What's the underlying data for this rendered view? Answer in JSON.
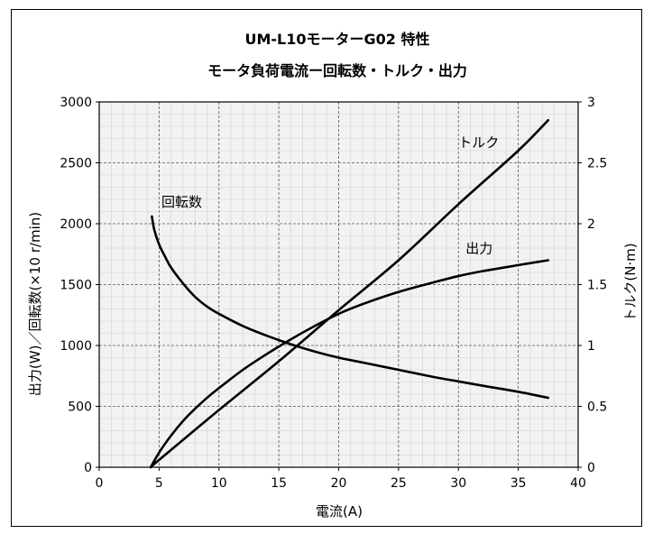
{
  "chart_data": {
    "type": "line",
    "title": "UM-L10モーターG02  特性",
    "subtitle": "モータ負荷電流ー回転数・トルク・出力",
    "xlabel": "電流(A)",
    "ylabel_left": "出力(W)／回転数(×10  r/min)",
    "ylabel_right": "トルク(N·m)",
    "xlim": [
      0,
      40
    ],
    "ylim_left": [
      0,
      3000
    ],
    "ylim_right": [
      0,
      3
    ],
    "x_ticks": [
      0,
      5,
      10,
      15,
      20,
      25,
      30,
      35,
      40
    ],
    "y_left_ticks": [
      0,
      500,
      1000,
      1500,
      2000,
      2500,
      3000
    ],
    "y_right_ticks": [
      "0",
      "0.5",
      "1",
      "1.5",
      "2",
      "2.5",
      "3"
    ],
    "grid": true,
    "series": [
      {
        "name": "回転数",
        "axis": "left",
        "x": [
          4.4,
          4.6,
          5,
          5.5,
          6,
          7,
          8,
          9,
          10,
          12,
          14,
          16,
          18,
          20,
          22,
          25,
          28,
          30,
          32,
          35,
          37.5
        ],
        "y": [
          2060,
          1950,
          1830,
          1730,
          1640,
          1510,
          1400,
          1320,
          1260,
          1160,
          1080,
          1010,
          950,
          900,
          860,
          800,
          740,
          705,
          670,
          620,
          570
        ]
      },
      {
        "name": "トルク",
        "axis": "right",
        "x": [
          4.3,
          5,
          10,
          15,
          20,
          25,
          30,
          35,
          37.5
        ],
        "y": [
          0,
          0.06,
          0.47,
          0.87,
          1.29,
          1.7,
          2.16,
          2.6,
          2.85
        ]
      },
      {
        "name": "出力",
        "axis": "left",
        "x": [
          4.3,
          5,
          6,
          7,
          8,
          9,
          10,
          12,
          14,
          16,
          18,
          20,
          22,
          25,
          28,
          30,
          32,
          35,
          37.5
        ],
        "y": [
          0,
          120,
          260,
          380,
          480,
          570,
          650,
          800,
          930,
          1050,
          1160,
          1260,
          1340,
          1440,
          1520,
          1570,
          1610,
          1660,
          1700
        ]
      }
    ],
    "annotations": [
      {
        "text": "回転数",
        "x": 5.2,
        "y": 2140
      },
      {
        "text": "トルク",
        "x": 30,
        "y": 2630
      },
      {
        "text": "出力",
        "x": 30.6,
        "y": 1760
      }
    ]
  }
}
